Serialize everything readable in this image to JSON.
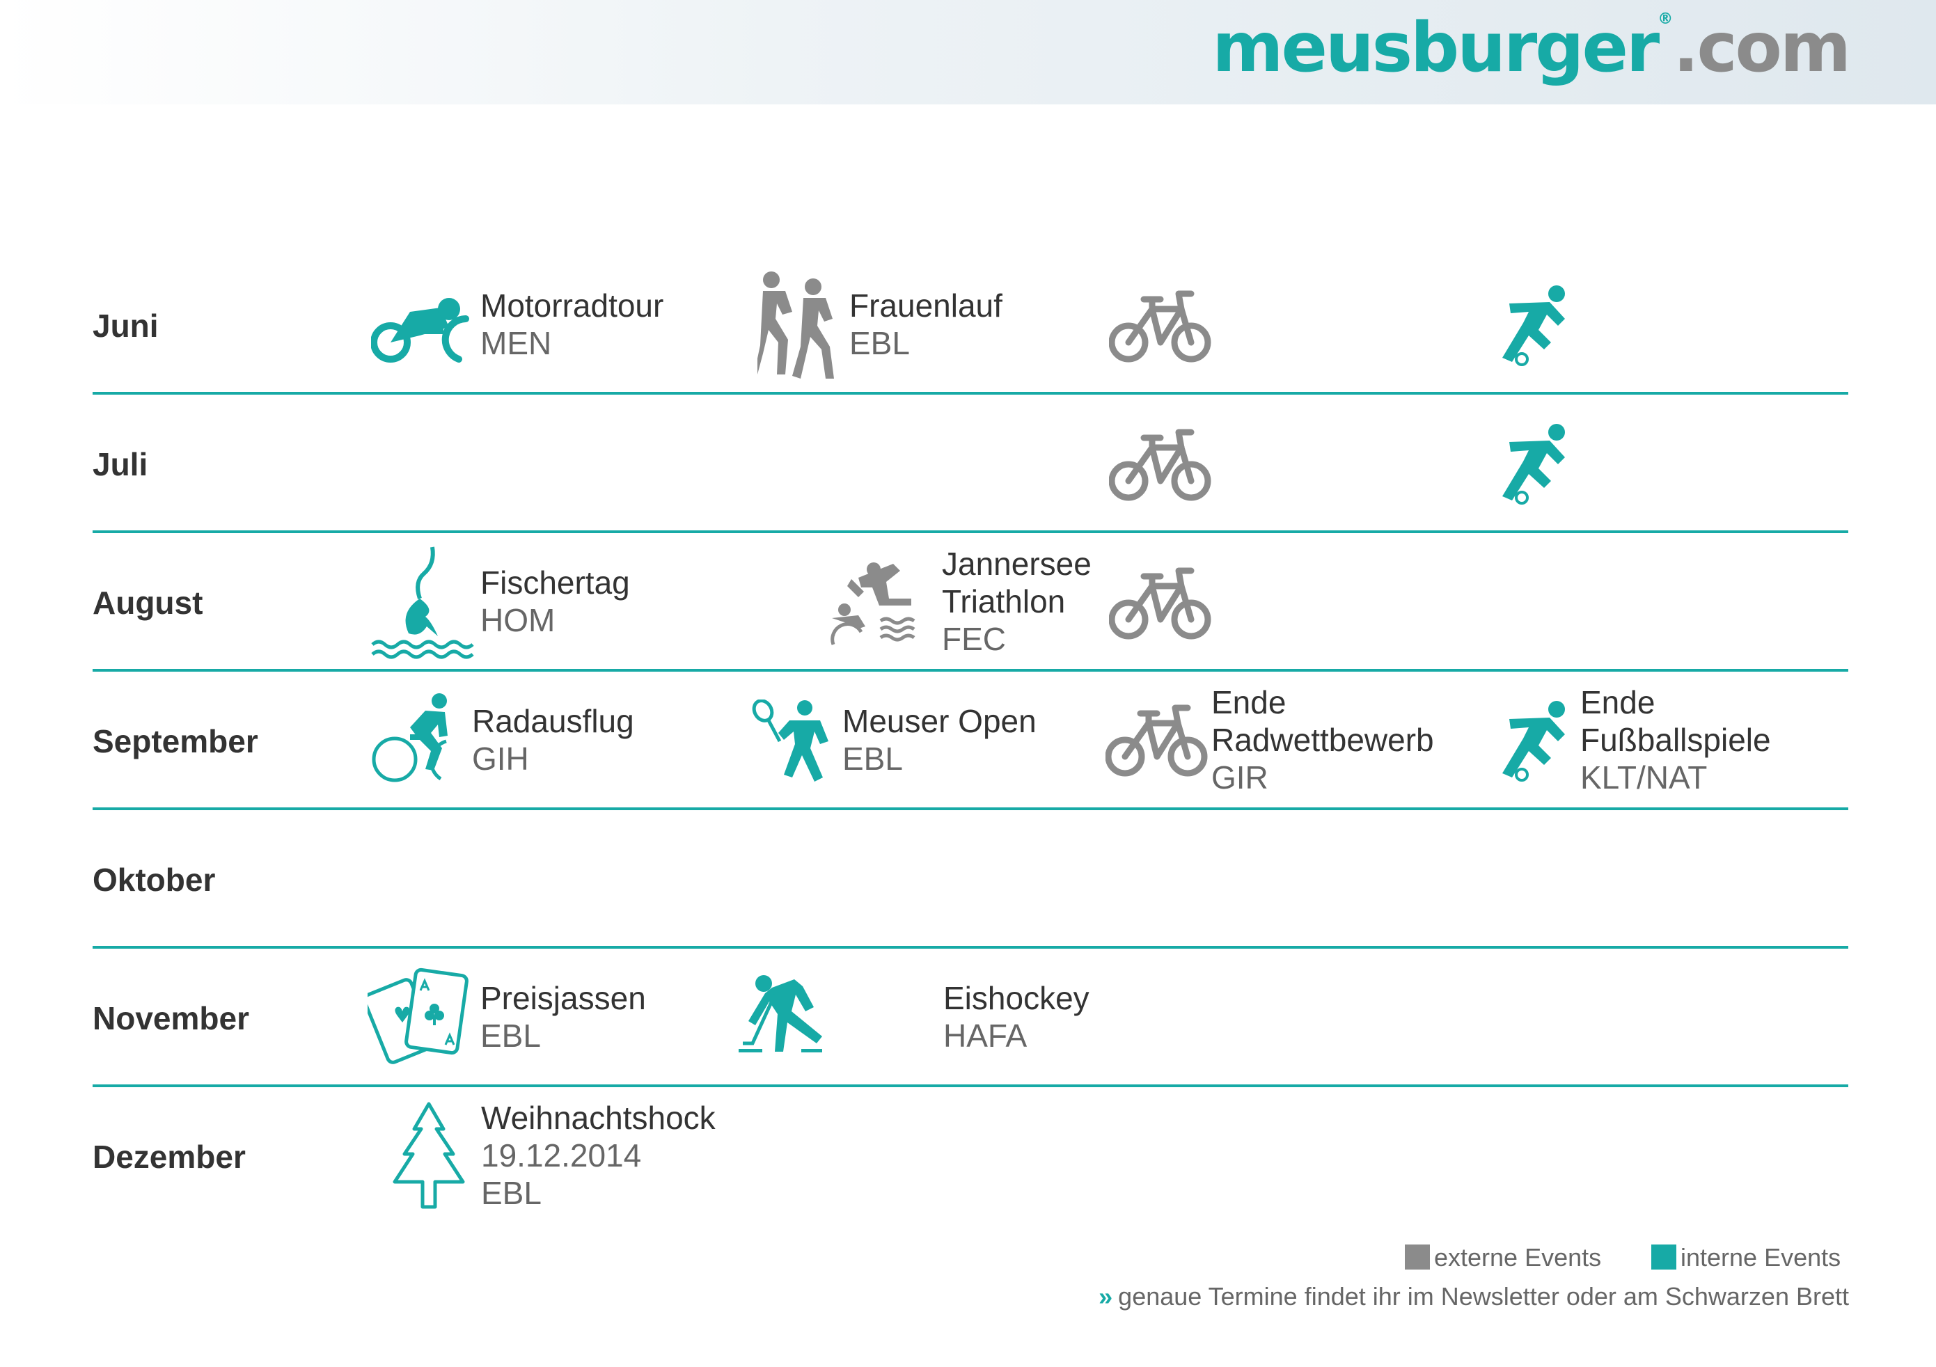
{
  "logo": {
    "brand": "meusburger",
    "reg": "®",
    "tld": ".com"
  },
  "colors": {
    "internal": "#17aaa6",
    "external": "#8b8b8b",
    "text": "#333333"
  },
  "months": [
    "Juni",
    "Juli",
    "August",
    "September",
    "Oktober",
    "November",
    "Dezember"
  ],
  "events": {
    "motorradtour": {
      "title": "Motorradtour",
      "sub": "MEN",
      "icon": "motorcycle-icon",
      "type": "intern"
    },
    "frauenlauf": {
      "title": "Frauenlauf",
      "sub": "EBL",
      "icon": "runners-icon",
      "type": "extern"
    },
    "fischertag": {
      "title": "Fischertag",
      "sub": "HOM",
      "icon": "fishing-icon",
      "type": "intern"
    },
    "triathlon": {
      "title1": "Jannersee",
      "title2": "Triathlon",
      "sub": "FEC",
      "icon": "triathlon-icon",
      "type": "extern"
    },
    "radausflug": {
      "title": "Radausflug",
      "sub": "GIH",
      "icon": "cyclist-icon",
      "type": "intern"
    },
    "meuser_open": {
      "title": "Meuser Open",
      "sub": "EBL",
      "icon": "tennis-icon",
      "type": "intern"
    },
    "radwettbewerb": {
      "title1": "Ende",
      "title2": "Radwettbewerb",
      "sub": "GIR",
      "icon": "bicycle-icon",
      "type": "extern"
    },
    "fussball": {
      "title1": "Ende",
      "title2": "Fußballspiele",
      "sub": "KLT/NAT",
      "icon": "soccer-icon",
      "type": "intern"
    },
    "preisjassen": {
      "title": "Preisjassen",
      "sub": "EBL",
      "icon": "playing-cards-icon",
      "type": "intern"
    },
    "eishockey": {
      "title": "Eishockey",
      "sub": "HAFA",
      "icon": "ice-hockey-icon",
      "type": "intern"
    },
    "weihnachtshock": {
      "title": "Weihnachtshock",
      "date": "19.12.2014",
      "sub": "EBL",
      "icon": "christmas-tree-icon",
      "type": "intern"
    }
  },
  "legend": {
    "external": "externe Events",
    "internal": "interne Events"
  },
  "note": {
    "chevron": "»",
    "text": "genaue Termine findet ihr im Newsletter oder am Schwarzen Brett"
  }
}
